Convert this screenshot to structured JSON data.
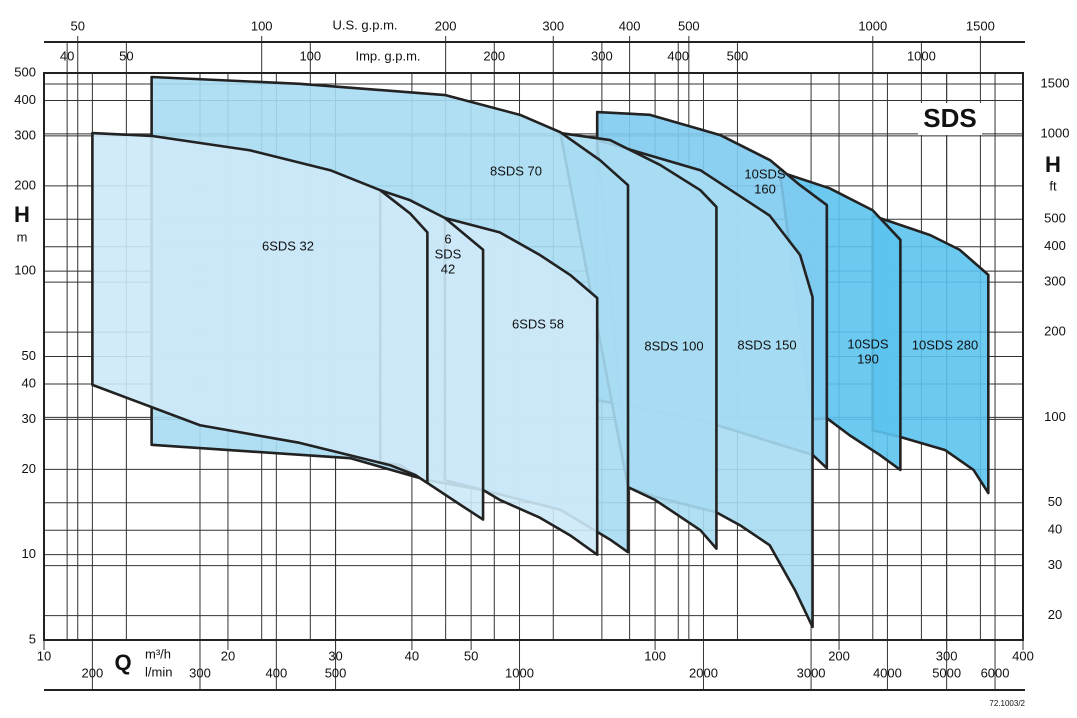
{
  "chart_data": {
    "type": "area",
    "title": "SDS",
    "x_label": "Q",
    "x_unit": "m³/h",
    "y_label": "H",
    "y_unit": "m",
    "xlim": [
      10,
      400
    ],
    "xticks": [
      10,
      20,
      30,
      40,
      50,
      100,
      200,
      300,
      400
    ],
    "x_log": true,
    "ylim": [
      5,
      500
    ],
    "yticks": [
      5,
      10,
      20,
      30,
      40,
      50,
      100,
      200,
      300,
      400,
      500
    ],
    "y_log": true,
    "grid": true,
    "top_axis": {
      "label": "U.S. g.p.m.",
      "lim": [
        44.03,
        1761.2
      ],
      "ticks": [
        50,
        100,
        200,
        300,
        400,
        500,
        1000,
        1500
      ]
    },
    "top_axis_2": {
      "label": "Imp. g.p.m.",
      "lim": [
        36.66,
        1466.4
      ],
      "ticks": [
        40,
        50,
        100,
        200,
        300,
        400,
        500,
        1000
      ]
    },
    "bottom_axis_2": {
      "label": "l/min",
      "lim": [
        166.67,
        6666.7
      ],
      "ticks": [
        200,
        300,
        400,
        500,
        1000,
        2000,
        3000,
        4000,
        5000,
        6000
      ]
    },
    "right_axis": {
      "label": "H",
      "unit": "ft",
      "lim": [
        16.4,
        1640.4
      ],
      "ticks": [
        20,
        30,
        40,
        50,
        100,
        200,
        300,
        400,
        500,
        1000,
        1500
      ]
    },
    "series": [
      {
        "name": [
          "10SDS 280"
        ],
        "color": "#5cc3ee",
        "x": [
          227,
          282,
          315,
          351,
          351,
          332,
          298,
          252,
          227
        ],
        "values": [
          157,
          134,
          119,
          97,
          16.5,
          19.9,
          23.4,
          26.0,
          27.5
        ]
      },
      {
        "name": [
          "10SDS",
          "190"
        ],
        "color": "#5cc3ee",
        "x": [
          160,
          193,
          227,
          252,
          252,
          233,
          208,
          191,
          181
        ],
        "values": [
          224,
          196,
          164,
          129,
          19.9,
          22.5,
          26.4,
          30.3,
          30
        ]
      },
      {
        "name": [
          "10SDS",
          "160"
        ],
        "color": "#7fcbef",
        "x": [
          80.4,
          98.1,
          127.8,
          154.4,
          172.7,
          191,
          191,
          181,
          119,
          80.4
        ],
        "values": [
          364,
          356,
          302,
          246,
          201,
          171,
          20.2,
          22.5,
          29.8,
          35.1
        ]
      },
      {
        "name": [
          "8SDS 150"
        ],
        "color": "#a7dbf3",
        "x": [
          80.4,
          118.6,
          154,
          172.7,
          181,
          181,
          169.4,
          154,
          137.7,
          126,
          100,
          90.3
        ],
        "values": [
          290,
          227,
          157,
          114,
          81,
          5.56,
          7.5,
          10.8,
          12.7,
          14.1,
          16.0,
          17.3
        ]
      },
      {
        "name": [
          "8SDS 100"
        ],
        "color": "#a7dbf3",
        "x": [
          70,
          84.4,
          101.9,
          118.6,
          126,
          126,
          118.6,
          100,
          90.3
        ],
        "values": [
          307,
          290,
          237,
          193,
          168.5,
          10.5,
          12.2,
          15.6,
          17.3
        ]
      },
      {
        "name": [
          "8SDS 70"
        ],
        "color": "#a7dbf3",
        "x": [
          15,
          26.2,
          45.3,
          60.1,
          70,
          81.3,
          90.3,
          90.3,
          84.4,
          70,
          52.3,
          42.4,
          31.7,
          15
        ],
        "values": [
          484,
          458,
          418,
          356,
          309,
          246,
          201,
          10.2,
          11.3,
          14.4,
          16.9,
          18.3,
          21.9,
          24.4
        ]
      },
      {
        "name": [
          "6SDS 58"
        ],
        "color": "#cde9f8",
        "x": [
          45.3,
          55.7,
          64.8,
          72.6,
          80.4,
          80.4,
          72.6,
          64.8,
          55.7,
          52.3,
          45.3
        ],
        "values": [
          154,
          137,
          114,
          97,
          80.4,
          10,
          11.7,
          13.5,
          15.6,
          16.9,
          18.3
        ]
      },
      {
        "name": [
          "6",
          "SDS",
          "42"
        ],
        "color": "#cde9f8",
        "x": [
          35.5,
          39.7,
          45.3,
          52.3,
          52.3,
          48,
          42.4,
          38.3,
          35.5
        ],
        "values": [
          193,
          178,
          154,
          119,
          13.3,
          15.0,
          17.9,
          20.7,
          21.2
        ]
      },
      {
        "name": [
          "6SDS 32"
        ],
        "color": "#cde9f8",
        "x": [
          12,
          15,
          21.7,
          29.4,
          35.5,
          39.7,
          42.4,
          42.4,
          40.5,
          36.8,
          26.2,
          18,
          12
        ],
        "values": [
          307,
          300,
          267,
          227,
          193,
          160,
          137,
          17.9,
          19.1,
          20.7,
          24.8,
          28.6,
          39.7
        ]
      }
    ],
    "footnote": "72.1003/2"
  }
}
